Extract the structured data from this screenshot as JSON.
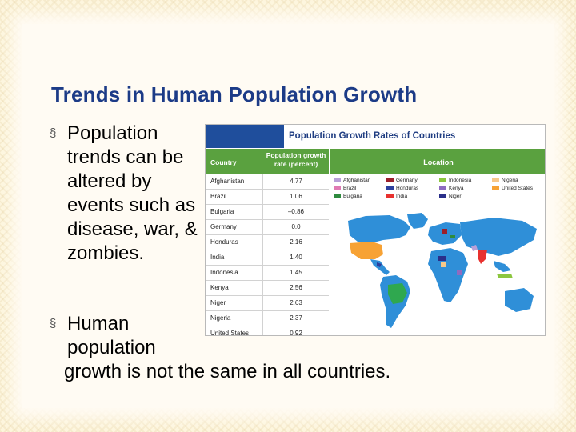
{
  "slide": {
    "title": "Trends in Human Population Growth",
    "bullet_marker": "§",
    "bullet1": "Population trends can be altered by events such as disease, war, & zombies.",
    "bullet2_line1": "Human",
    "bullet2_line2": "population",
    "bullet2_line3": "growth is not the same in all countries."
  },
  "figure": {
    "title": "Population Growth Rates of Countries",
    "header_country": "Country",
    "header_rate": "Population growth rate (percent)",
    "header_location": "Location",
    "rows": [
      {
        "country": "Afghanistan",
        "rate": "4.77"
      },
      {
        "country": "Brazil",
        "rate": "1.06"
      },
      {
        "country": "Bulgaria",
        "rate": "–0.86"
      },
      {
        "country": "Germany",
        "rate": "0.0"
      },
      {
        "country": "Honduras",
        "rate": "2.16"
      },
      {
        "country": "India",
        "rate": "1.40"
      },
      {
        "country": "Indonesia",
        "rate": "1.45"
      },
      {
        "country": "Kenya",
        "rate": "2.56"
      },
      {
        "country": "Niger",
        "rate": "2.63"
      },
      {
        "country": "Nigeria",
        "rate": "2.37"
      },
      {
        "country": "United States",
        "rate": "0.92"
      }
    ],
    "legend": [
      {
        "label": "Afghanistan",
        "color": "#b8a0d8"
      },
      {
        "label": "Brazil",
        "color": "#e07ab4"
      },
      {
        "label": "Bulgaria",
        "color": "#2e8b3e"
      },
      {
        "label": "Germany",
        "color": "#9c1f2a"
      },
      {
        "label": "Honduras",
        "color": "#2b3f9e"
      },
      {
        "label": "India",
        "color": "#e8312f"
      },
      {
        "label": "Indonesia",
        "color": "#8cc63f"
      },
      {
        "label": "Kenya",
        "color": "#8e6bc0"
      },
      {
        "label": "Niger",
        "color": "#2a2f8a"
      },
      {
        "label": "Nigeria",
        "color": "#f7c88a"
      },
      {
        "label": "United States",
        "color": "#f7a234"
      }
    ],
    "colors": {
      "land": "#2f8fd8",
      "header_green": "#5aa13f",
      "title_blue": "#1f3d82"
    }
  }
}
